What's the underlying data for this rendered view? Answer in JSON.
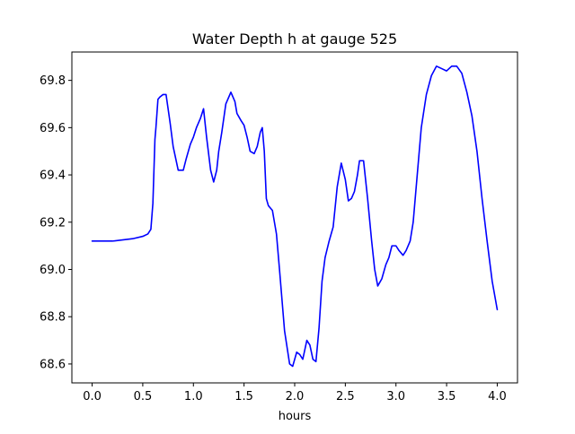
{
  "chart_data": {
    "type": "line",
    "title": "Water Depth h at gauge 525",
    "xlabel": "hours",
    "ylabel": "",
    "xlim": [
      -0.2,
      4.2
    ],
    "ylim": [
      68.52,
      69.92
    ],
    "xticks": [
      0.0,
      0.5,
      1.0,
      1.5,
      2.0,
      2.5,
      3.0,
      3.5,
      4.0
    ],
    "xtick_labels": [
      "0.0",
      "0.5",
      "1.0",
      "1.5",
      "2.0",
      "2.5",
      "3.0",
      "3.5",
      "4.0"
    ],
    "yticks": [
      68.6,
      68.8,
      69.0,
      69.2,
      69.4,
      69.6,
      69.8
    ],
    "ytick_labels": [
      "68.6",
      "68.8",
      "69.0",
      "69.2",
      "69.4",
      "69.6",
      "69.8"
    ],
    "grid": false,
    "series": [
      {
        "color": "#0000ff",
        "x": [
          0.0,
          0.2,
          0.4,
          0.5,
          0.55,
          0.58,
          0.6,
          0.62,
          0.63,
          0.65,
          0.67,
          0.7,
          0.73,
          0.75,
          0.77,
          0.8,
          0.85,
          0.9,
          0.93,
          0.97,
          1.0,
          1.03,
          1.07,
          1.1,
          1.13,
          1.17,
          1.2,
          1.23,
          1.25,
          1.28,
          1.32,
          1.37,
          1.41,
          1.43,
          1.47,
          1.5,
          1.53,
          1.56,
          1.6,
          1.63,
          1.66,
          1.68,
          1.7,
          1.72,
          1.74,
          1.76,
          1.78,
          1.82,
          1.85,
          1.9,
          1.95,
          1.98,
          2.02,
          2.05,
          2.08,
          2.12,
          2.15,
          2.18,
          2.21,
          2.24,
          2.27,
          2.3,
          2.34,
          2.38,
          2.42,
          2.46,
          2.5,
          2.53,
          2.56,
          2.59,
          2.62,
          2.64,
          2.68,
          2.72,
          2.76,
          2.79,
          2.82,
          2.86,
          2.9,
          2.93,
          2.96,
          3.0,
          3.03,
          3.07,
          3.1,
          3.14,
          3.17,
          3.2,
          3.25,
          3.3,
          3.35,
          3.4,
          3.45,
          3.5,
          3.55,
          3.6,
          3.65,
          3.7,
          3.75,
          3.8,
          3.85,
          3.9,
          3.95,
          4.0
        ],
        "y": [
          69.12,
          69.12,
          69.13,
          69.14,
          69.15,
          69.17,
          69.28,
          69.55,
          69.6,
          69.72,
          69.73,
          69.74,
          69.74,
          69.68,
          69.62,
          69.52,
          69.42,
          69.42,
          69.47,
          69.53,
          69.56,
          69.6,
          69.64,
          69.68,
          69.56,
          69.42,
          69.37,
          69.42,
          69.5,
          69.58,
          69.7,
          69.75,
          69.71,
          69.66,
          69.63,
          69.61,
          69.56,
          69.5,
          69.49,
          69.52,
          69.58,
          69.6,
          69.5,
          69.3,
          69.27,
          69.26,
          69.25,
          69.15,
          69.0,
          68.74,
          68.6,
          68.59,
          68.65,
          68.64,
          68.62,
          68.7,
          68.68,
          68.62,
          68.61,
          68.75,
          68.95,
          69.05,
          69.12,
          69.18,
          69.35,
          69.45,
          69.38,
          69.29,
          69.3,
          69.33,
          69.4,
          69.46,
          69.46,
          69.3,
          69.12,
          69.0,
          68.93,
          68.96,
          69.02,
          69.05,
          69.1,
          69.1,
          69.08,
          69.06,
          69.08,
          69.12,
          69.2,
          69.35,
          69.6,
          69.74,
          69.82,
          69.86,
          69.85,
          69.84,
          69.86,
          69.86,
          69.83,
          69.75,
          69.65,
          69.5,
          69.3,
          69.12,
          68.95,
          68.83
        ]
      }
    ]
  }
}
